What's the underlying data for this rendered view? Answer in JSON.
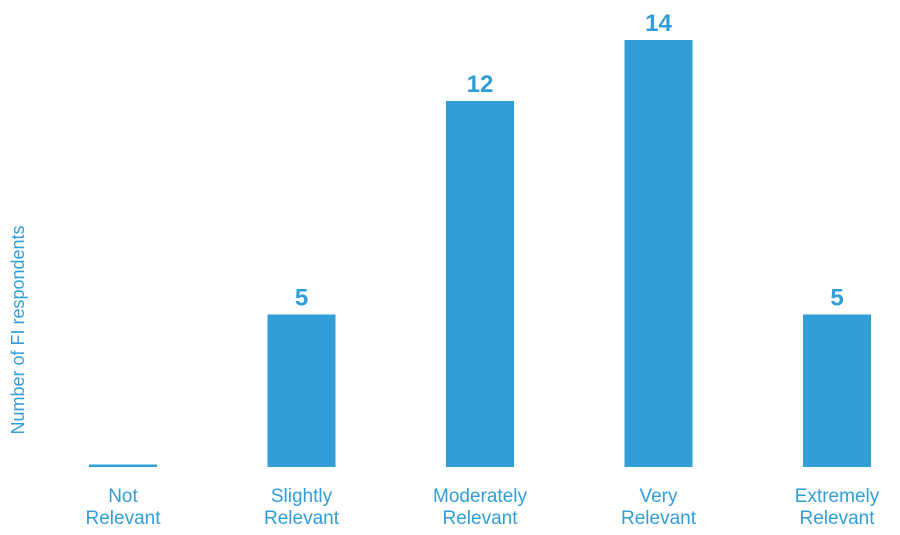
{
  "chart_data": {
    "type": "bar",
    "categories": [
      [
        "Not",
        "Relevant"
      ],
      [
        "Slightly",
        "Relevant"
      ],
      [
        "Moderately",
        "Relevant"
      ],
      [
        "Very",
        "Relevant"
      ],
      [
        "Extremely",
        "Relevant"
      ]
    ],
    "values": [
      0,
      5,
      12,
      14,
      5
    ],
    "data_labels": [
      "",
      "5",
      "12",
      "14",
      "5"
    ],
    "title": "",
    "xlabel": "",
    "ylabel": "Number of FI respondents",
    "ylim": [
      0,
      14
    ],
    "grid": false,
    "legend": "none",
    "colors": {
      "bar": "#319ED8",
      "text": "#319ED8"
    }
  }
}
